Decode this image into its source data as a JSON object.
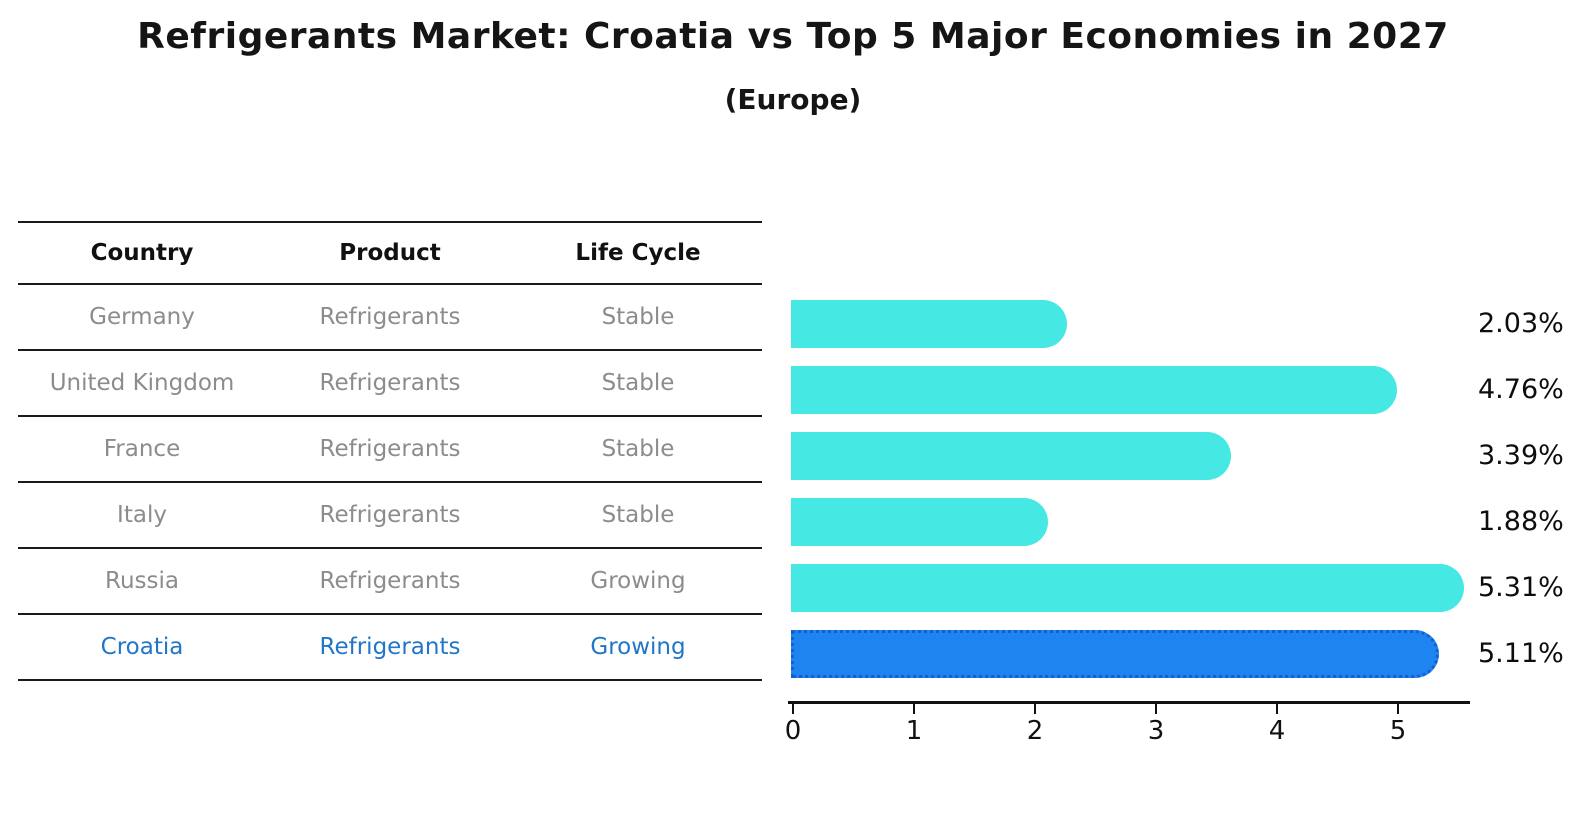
{
  "title": "Refrigerants Market: Croatia vs Top 5 Major Economies in 2027",
  "subtitle": "(Europe)",
  "table": {
    "headers": [
      "Country",
      "Product",
      "Life Cycle"
    ],
    "rows": [
      {
        "country": "Germany",
        "product": "Refrigerants",
        "life_cycle": "Stable",
        "highlight": false
      },
      {
        "country": "United Kingdom",
        "product": "Refrigerants",
        "life_cycle": "Stable",
        "highlight": false
      },
      {
        "country": "France",
        "product": "Refrigerants",
        "life_cycle": "Stable",
        "highlight": false
      },
      {
        "country": "Italy",
        "product": "Refrigerants",
        "life_cycle": "Stable",
        "highlight": false
      },
      {
        "country": "Russia",
        "product": "Refrigerants",
        "life_cycle": "Growing",
        "highlight": false
      },
      {
        "country": "Croatia",
        "product": "Refrigerants",
        "life_cycle": "Growing",
        "highlight": true
      }
    ]
  },
  "chart_data": {
    "type": "bar",
    "orientation": "horizontal",
    "title": "Refrigerants Market: Croatia vs Top 5 Major Economies in 2027",
    "subtitle": "(Europe)",
    "categories": [
      "Germany",
      "United Kingdom",
      "France",
      "Italy",
      "Russia",
      "Croatia"
    ],
    "values": [
      2.03,
      4.76,
      3.39,
      1.88,
      5.31,
      5.11
    ],
    "value_labels": [
      "2.03%",
      "4.76%",
      "3.39%",
      "1.88%",
      "5.31%",
      "5.11%"
    ],
    "x_ticks": [
      "0",
      "1",
      "2",
      "3",
      "4",
      "5"
    ],
    "xlim": [
      0,
      5.6
    ],
    "grid": false,
    "legend": false,
    "bar_color": "#45E8E2",
    "highlight_index": 5,
    "highlight_color": "#1E84F0",
    "highlight_border_color": "#1261d4",
    "highlight_text_color": "#2176C7",
    "row_text_color": "#8c8c8c",
    "axis_color": "#111111"
  }
}
